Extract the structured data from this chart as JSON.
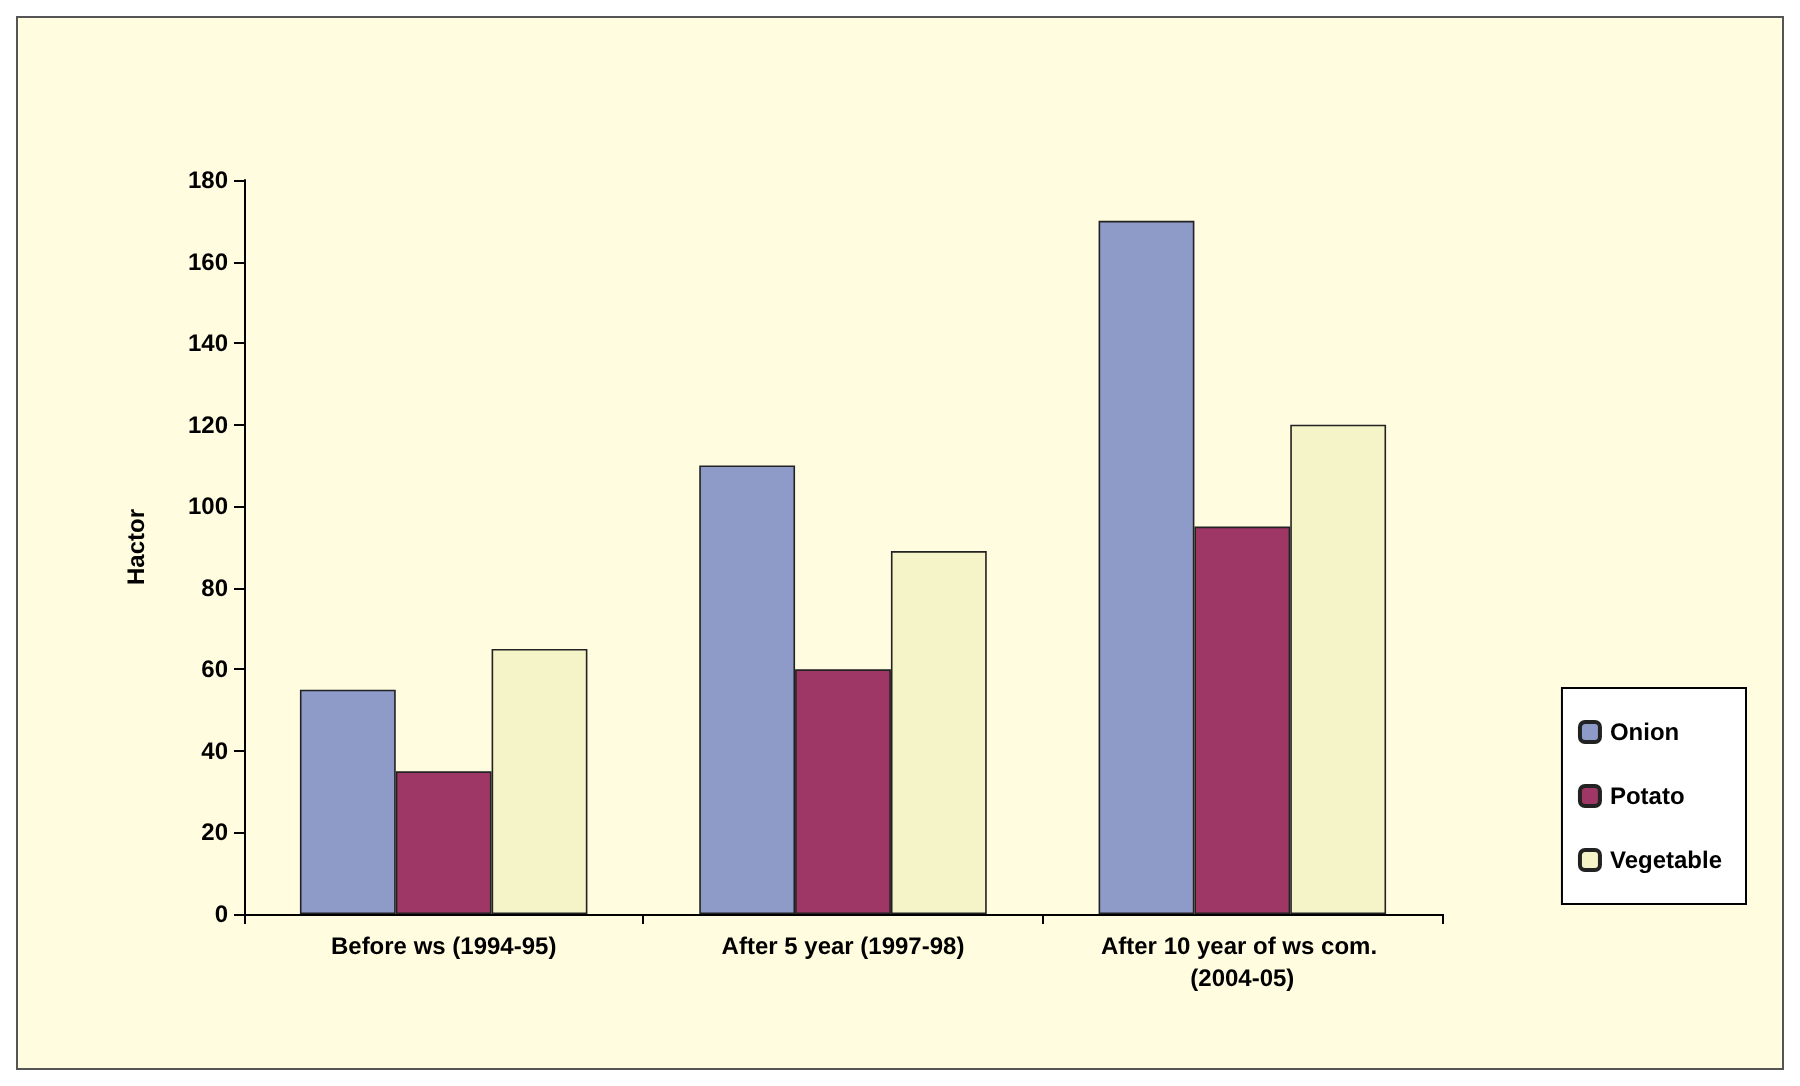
{
  "chart_data": {
    "type": "bar",
    "ylabel": "Hactor",
    "categories": [
      "Before ws (1994-95)",
      "After 5 year (1997-98)",
      "After 10 year of ws com. (2004-05)"
    ],
    "series": [
      {
        "name": "Onion",
        "color": "#8e9ac8",
        "values": [
          55,
          110,
          170
        ]
      },
      {
        "name": "Potato",
        "color": "#9e3766",
        "values": [
          35,
          60,
          95
        ]
      },
      {
        "name": "Vegetable",
        "color": "#f5f3c8",
        "values": [
          65,
          89,
          120
        ]
      }
    ],
    "ylim": [
      0,
      180
    ],
    "yticks": [
      0,
      20,
      40,
      60,
      80,
      100,
      120,
      140,
      160,
      180
    ],
    "grid": false,
    "legend": "right"
  }
}
